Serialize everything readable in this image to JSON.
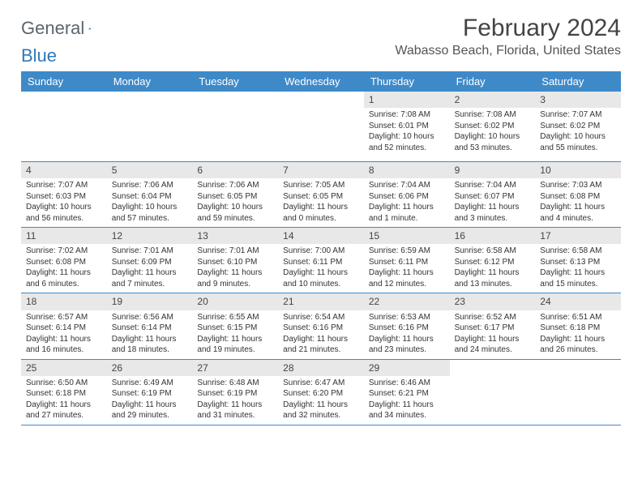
{
  "logo": {
    "text_a": "General",
    "text_b": "Blue"
  },
  "header": {
    "month_title": "February 2024",
    "location": "Wabasso Beach, Florida, United States"
  },
  "colors": {
    "header_bg": "#3e8ac9",
    "header_text": "#ffffff",
    "daynum_bg": "#e8e8e8",
    "border": "#3e8ac9"
  },
  "day_names": [
    "Sunday",
    "Monday",
    "Tuesday",
    "Wednesday",
    "Thursday",
    "Friday",
    "Saturday"
  ],
  "weeks": [
    [
      {
        "n": "",
        "empty": true
      },
      {
        "n": "",
        "empty": true
      },
      {
        "n": "",
        "empty": true
      },
      {
        "n": "",
        "empty": true
      },
      {
        "n": "1",
        "sr": "Sunrise: 7:08 AM",
        "ss": "Sunset: 6:01 PM",
        "d1": "Daylight: 10 hours",
        "d2": "and 52 minutes."
      },
      {
        "n": "2",
        "sr": "Sunrise: 7:08 AM",
        "ss": "Sunset: 6:02 PM",
        "d1": "Daylight: 10 hours",
        "d2": "and 53 minutes."
      },
      {
        "n": "3",
        "sr": "Sunrise: 7:07 AM",
        "ss": "Sunset: 6:02 PM",
        "d1": "Daylight: 10 hours",
        "d2": "and 55 minutes."
      }
    ],
    [
      {
        "n": "4",
        "sr": "Sunrise: 7:07 AM",
        "ss": "Sunset: 6:03 PM",
        "d1": "Daylight: 10 hours",
        "d2": "and 56 minutes."
      },
      {
        "n": "5",
        "sr": "Sunrise: 7:06 AM",
        "ss": "Sunset: 6:04 PM",
        "d1": "Daylight: 10 hours",
        "d2": "and 57 minutes."
      },
      {
        "n": "6",
        "sr": "Sunrise: 7:06 AM",
        "ss": "Sunset: 6:05 PM",
        "d1": "Daylight: 10 hours",
        "d2": "and 59 minutes."
      },
      {
        "n": "7",
        "sr": "Sunrise: 7:05 AM",
        "ss": "Sunset: 6:05 PM",
        "d1": "Daylight: 11 hours",
        "d2": "and 0 minutes."
      },
      {
        "n": "8",
        "sr": "Sunrise: 7:04 AM",
        "ss": "Sunset: 6:06 PM",
        "d1": "Daylight: 11 hours",
        "d2": "and 1 minute."
      },
      {
        "n": "9",
        "sr": "Sunrise: 7:04 AM",
        "ss": "Sunset: 6:07 PM",
        "d1": "Daylight: 11 hours",
        "d2": "and 3 minutes."
      },
      {
        "n": "10",
        "sr": "Sunrise: 7:03 AM",
        "ss": "Sunset: 6:08 PM",
        "d1": "Daylight: 11 hours",
        "d2": "and 4 minutes."
      }
    ],
    [
      {
        "n": "11",
        "sr": "Sunrise: 7:02 AM",
        "ss": "Sunset: 6:08 PM",
        "d1": "Daylight: 11 hours",
        "d2": "and 6 minutes."
      },
      {
        "n": "12",
        "sr": "Sunrise: 7:01 AM",
        "ss": "Sunset: 6:09 PM",
        "d1": "Daylight: 11 hours",
        "d2": "and 7 minutes."
      },
      {
        "n": "13",
        "sr": "Sunrise: 7:01 AM",
        "ss": "Sunset: 6:10 PM",
        "d1": "Daylight: 11 hours",
        "d2": "and 9 minutes."
      },
      {
        "n": "14",
        "sr": "Sunrise: 7:00 AM",
        "ss": "Sunset: 6:11 PM",
        "d1": "Daylight: 11 hours",
        "d2": "and 10 minutes."
      },
      {
        "n": "15",
        "sr": "Sunrise: 6:59 AM",
        "ss": "Sunset: 6:11 PM",
        "d1": "Daylight: 11 hours",
        "d2": "and 12 minutes."
      },
      {
        "n": "16",
        "sr": "Sunrise: 6:58 AM",
        "ss": "Sunset: 6:12 PM",
        "d1": "Daylight: 11 hours",
        "d2": "and 13 minutes."
      },
      {
        "n": "17",
        "sr": "Sunrise: 6:58 AM",
        "ss": "Sunset: 6:13 PM",
        "d1": "Daylight: 11 hours",
        "d2": "and 15 minutes."
      }
    ],
    [
      {
        "n": "18",
        "sr": "Sunrise: 6:57 AM",
        "ss": "Sunset: 6:14 PM",
        "d1": "Daylight: 11 hours",
        "d2": "and 16 minutes."
      },
      {
        "n": "19",
        "sr": "Sunrise: 6:56 AM",
        "ss": "Sunset: 6:14 PM",
        "d1": "Daylight: 11 hours",
        "d2": "and 18 minutes."
      },
      {
        "n": "20",
        "sr": "Sunrise: 6:55 AM",
        "ss": "Sunset: 6:15 PM",
        "d1": "Daylight: 11 hours",
        "d2": "and 19 minutes."
      },
      {
        "n": "21",
        "sr": "Sunrise: 6:54 AM",
        "ss": "Sunset: 6:16 PM",
        "d1": "Daylight: 11 hours",
        "d2": "and 21 minutes."
      },
      {
        "n": "22",
        "sr": "Sunrise: 6:53 AM",
        "ss": "Sunset: 6:16 PM",
        "d1": "Daylight: 11 hours",
        "d2": "and 23 minutes."
      },
      {
        "n": "23",
        "sr": "Sunrise: 6:52 AM",
        "ss": "Sunset: 6:17 PM",
        "d1": "Daylight: 11 hours",
        "d2": "and 24 minutes."
      },
      {
        "n": "24",
        "sr": "Sunrise: 6:51 AM",
        "ss": "Sunset: 6:18 PM",
        "d1": "Daylight: 11 hours",
        "d2": "and 26 minutes."
      }
    ],
    [
      {
        "n": "25",
        "sr": "Sunrise: 6:50 AM",
        "ss": "Sunset: 6:18 PM",
        "d1": "Daylight: 11 hours",
        "d2": "and 27 minutes."
      },
      {
        "n": "26",
        "sr": "Sunrise: 6:49 AM",
        "ss": "Sunset: 6:19 PM",
        "d1": "Daylight: 11 hours",
        "d2": "and 29 minutes."
      },
      {
        "n": "27",
        "sr": "Sunrise: 6:48 AM",
        "ss": "Sunset: 6:19 PM",
        "d1": "Daylight: 11 hours",
        "d2": "and 31 minutes."
      },
      {
        "n": "28",
        "sr": "Sunrise: 6:47 AM",
        "ss": "Sunset: 6:20 PM",
        "d1": "Daylight: 11 hours",
        "d2": "and 32 minutes."
      },
      {
        "n": "29",
        "sr": "Sunrise: 6:46 AM",
        "ss": "Sunset: 6:21 PM",
        "d1": "Daylight: 11 hours",
        "d2": "and 34 minutes."
      },
      {
        "n": "",
        "empty": true
      },
      {
        "n": "",
        "empty": true
      }
    ]
  ]
}
